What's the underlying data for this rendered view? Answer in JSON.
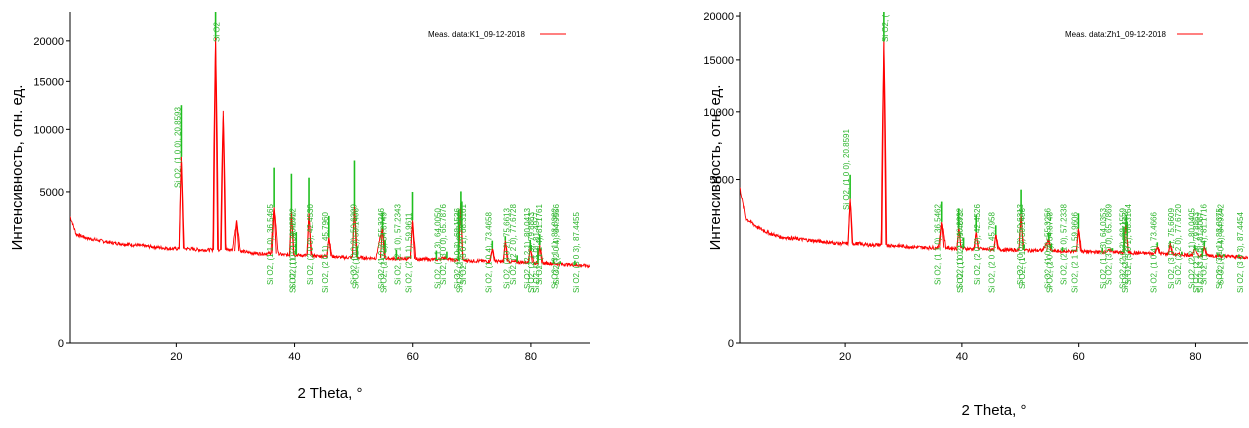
{
  "chart_data": [
    {
      "type": "line",
      "legend": "Meas. data:K1_09-12-2018",
      "legend_position": "top-right",
      "xlabel": "2 Theta, °",
      "ylabel": "Интенсивность, отн. ед.",
      "xlim": [
        2,
        90
      ],
      "y_scale": "sqrt",
      "ylim": [
        0,
        24000
      ],
      "x_ticks": [
        "20",
        "40",
        "60",
        "80"
      ],
      "y_ticks": [
        "0",
        "5000",
        "10000",
        "15000",
        "20000"
      ],
      "grid": false,
      "colors": {
        "measured": "#ff0000",
        "reference": "#1fbf1f"
      },
      "series": [
        {
          "name": "Meas. data:K1_09-12-2018",
          "x": [
            2,
            3,
            5,
            7,
            9,
            11,
            13,
            15,
            17,
            19,
            20.5,
            20.86,
            21.3,
            22,
            24,
            26.2,
            26.64,
            27.1,
            27.5,
            27.95,
            28.4,
            29.5,
            30.2,
            30.8,
            32,
            34,
            36,
            36.55,
            37.2,
            38,
            39.2,
            39.47,
            39.9,
            40.3,
            41,
            42.2,
            42.45,
            42.9,
            44,
            45.5,
            45.8,
            46.3,
            48,
            49.8,
            50.14,
            50.6,
            52,
            53.8,
            54.87,
            55.4,
            57,
            59.6,
            59.96,
            60.5,
            62,
            64.2,
            65.5,
            66.8,
            67.8,
            68.1,
            68.5,
            70,
            73,
            73.47,
            74,
            75.4,
            75.66,
            76.2,
            78,
            79.5,
            79.9,
            80.5,
            81.2,
            81.5,
            82,
            84,
            86,
            88,
            90
          ],
          "y": [
            3500,
            2600,
            2400,
            2300,
            2200,
            2150,
            2100,
            2050,
            2000,
            1950,
            1950,
            7600,
            1950,
            1950,
            1900,
            1900,
            20400,
            1900,
            1900,
            11800,
            1900,
            1900,
            3300,
            1850,
            1800,
            1750,
            1750,
            4050,
            1750,
            1700,
            1700,
            3800,
            1700,
            1700,
            1680,
            1680,
            3700,
            1680,
            1650,
            1650,
            2450,
            1650,
            1600,
            1600,
            4100,
            1600,
            1580,
            1580,
            2900,
            1570,
            1550,
            1550,
            3300,
            1550,
            1530,
            1520,
            1600,
            1500,
            1500,
            4300,
            1500,
            1480,
            1460,
            1950,
            1460,
            1450,
            2300,
            1450,
            1430,
            1420,
            2000,
            1400,
            1400,
            2100,
            1400,
            1380,
            1350,
            1330,
            1300
          ]
        },
        {
          "name": "Si O2",
          "x": [
            20.8593,
            26.64,
            36.5465,
            39.467,
            40.2922,
            42.453,
            45.796,
            50.1406,
            50.6209,
            54.8749,
            55.3246,
            57.2343,
            59.9611,
            64.005,
            65.7876,
            67.7449,
            68.1526,
            68.3161,
            73.4658,
            75.6613,
            77.6728,
            79.8863,
            80.0413,
            81.1761,
            81.4977,
            83.8382,
            84.9556,
            87.4455
          ],
          "y": [
            4800,
            19400,
            2700,
            2500,
            1000,
            2300,
            1100,
            3200,
            450,
            850,
            550,
            350,
            1700,
            350,
            250,
            2400,
            1100,
            1600,
            350,
            200,
            250,
            350,
            250,
            600,
            500,
            150,
            100,
            150
          ]
        }
      ],
      "annotations": [
        "Si O2, (1 0 0), 20.8593",
        "Si O2",
        "Si O2, (1 1 0), 36.5465",
        "Si O2, (1 0 2), 39.4670",
        "Si O2, (1 1 1), 40.2922",
        "Si O2, (2 0 0), 42.4530",
        "Si O2, (2 0 1), 45.7960",
        "Si O2, (1 1 2), 50.1406",
        "Si O2, (0 0 3), 50.6209",
        "Si O2, (2 0 2), 54.8749",
        "Si O2, (1 0 3), 55.3246",
        "Si O2, (2 1 0), 57.2343",
        "Si O2, (2 1 1), 59.9611",
        "Si O2, (1 1 3), 64.0050",
        "Si O2, (3 0 0), 65.7876",
        "Si O2, (2 1 2), 67.7449",
        "Si O2, (2 0 3), 68.1526",
        "Si O2, (3 0 1), 68.3161",
        "Si O2, (1 0 4), 73.4658",
        "Si O2, (3 0 2), 75.6613",
        "Si O2, (2 2 0), 77.6728",
        "Si O2, (2 1 3), 79.8863",
        "Si O2, (2 2 1), 80.0413",
        "Si O2, (1 1 4), 81.1761",
        "Si O2, (3 1 0), 81.4977",
        "Si O2, (3 1 1), 83.8382",
        "Si O2, (2 0 4), 84.9556",
        "Si O2, (3 0 3), 87.4455"
      ]
    },
    {
      "type": "line",
      "legend": "Meas. data:Zh1_09-12-2018",
      "legend_position": "top-right",
      "xlabel": "2 Theta, °",
      "ylabel": "Интенсивность, отн. ед.",
      "xlim": [
        2,
        89
      ],
      "y_scale": "sqrt",
      "ylim": [
        0,
        20500
      ],
      "x_ticks": [
        "20",
        "40",
        "60",
        "80"
      ],
      "y_ticks": [
        "0",
        "5000",
        "10000",
        "15000",
        "20000"
      ],
      "grid": false,
      "colors": {
        "measured": "#ff0000",
        "reference": "#1fbf1f"
      },
      "series": [
        {
          "name": "Meas. data:Zh1_09-12-2018",
          "x": [
            2,
            3,
            5,
            7,
            9,
            11,
            13,
            15,
            17,
            19,
            20.5,
            20.86,
            21.3,
            22,
            24,
            26.2,
            26.64,
            27.1,
            28,
            30,
            32,
            34,
            36,
            36.55,
            37.2,
            38,
            39.2,
            39.47,
            39.9,
            40.3,
            41,
            42.2,
            42.45,
            42.9,
            44,
            45.5,
            45.8,
            46.3,
            48,
            49.8,
            50.14,
            50.6,
            52,
            53.8,
            54.87,
            55.4,
            57,
            59.6,
            59.96,
            60.5,
            62,
            64.2,
            65.5,
            66.8,
            67.8,
            68.1,
            68.5,
            70,
            73,
            73.47,
            74,
            75.4,
            75.66,
            76.2,
            78,
            79.5,
            79.9,
            80.5,
            81.2,
            81.5,
            82,
            84,
            86,
            88,
            89
          ],
          "y": [
            4500,
            2900,
            2500,
            2250,
            2100,
            2050,
            2000,
            1950,
            1900,
            1850,
            1850,
            3900,
            1850,
            1850,
            1800,
            1800,
            17000,
            1800,
            1780,
            1750,
            1720,
            1700,
            1700,
            2750,
            1700,
            1680,
            1680,
            2500,
            1680,
            1680,
            1660,
            1660,
            2300,
            1660,
            1640,
            1640,
            2200,
            1640,
            1620,
            1620,
            3100,
            1620,
            1600,
            1600,
            2000,
            1590,
            1570,
            1570,
            2450,
            1570,
            1550,
            1550,
            1600,
            1530,
            1530,
            2800,
            1530,
            1510,
            1500,
            1750,
            1490,
            1480,
            1850,
            1470,
            1460,
            1450,
            1650,
            1440,
            1440,
            1750,
            1440,
            1420,
            1400,
            1380,
            1370
          ]
        },
        {
          "name": "Si O2",
          "x": [
            20.8591,
            26.64,
            36.5462,
            39.4673,
            40.2922,
            42.4526,
            45.7958,
            50.1406,
            50.6213,
            54.8748,
            55.3256,
            57.2338,
            59.9606,
            64.0353,
            65.7869,
            67.7443,
            68.1559,
            68.3164,
            73.4666,
            75.6609,
            77.672,
            79.8863,
            80.0405,
            81.1716,
            81.5067,
            83.8375,
            84.9342,
            87.4454
          ],
          "y": [
            1400,
            15000,
            1000,
            900,
            400,
            800,
            400,
            1300,
            200,
            300,
            200,
            150,
            700,
            150,
            100,
            1000,
            450,
            650,
            150,
            100,
            100,
            150,
            100,
            250,
            200,
            80,
            60,
            80
          ]
        }
      ],
      "annotations": [
        "Si O2, (1 0 0), 20.8591",
        "Si O2, (",
        "Si O2, (1 1 0), 36.5462",
        "Si O2, (1 0 2), 39.4673",
        "Si O2, (1 1 1), 40.2922",
        "Si O2, (2 0 0), 42.4526",
        "Si O2, (2 0 1), 45.7958",
        "Si O2, (1 1 2), 50.1406",
        "Si O2, (0 0 3), 50.6213",
        "Si O2, (2 0 2), 54.8748",
        "Si O2, (1 0 3), 55.3256",
        "Si O2, (2 1 0), 57.2338",
        "Si O2, (2 1 1), 59.9606",
        "Si O2, (1 1 3), 64.0353",
        "Si O2, (3 0 0), 65.7869",
        "Si O2, (2 1 2), 67.7443",
        "Si O2, (2 0 3), 68.1559",
        "Si O2, (3 0 1), 68.3164",
        "Si O2, (1 0 4), 73.4666",
        "Si O2, (3 0 2), 75.6609",
        "Si O2, (2 2 0), 77.6720",
        "Si O2, (2 1 3), 79.8863",
        "Si O2, (2 2 1), 80.0405",
        "Si O2, (1 1 4), 81.1716",
        "Si O2, (3 1 0), 81.5067",
        "Si O2, (3 1 1), 83.8375",
        "Si O2, (2 0 4), 84.9342",
        "Si O2, (3 0 3), 87.4454"
      ]
    }
  ]
}
